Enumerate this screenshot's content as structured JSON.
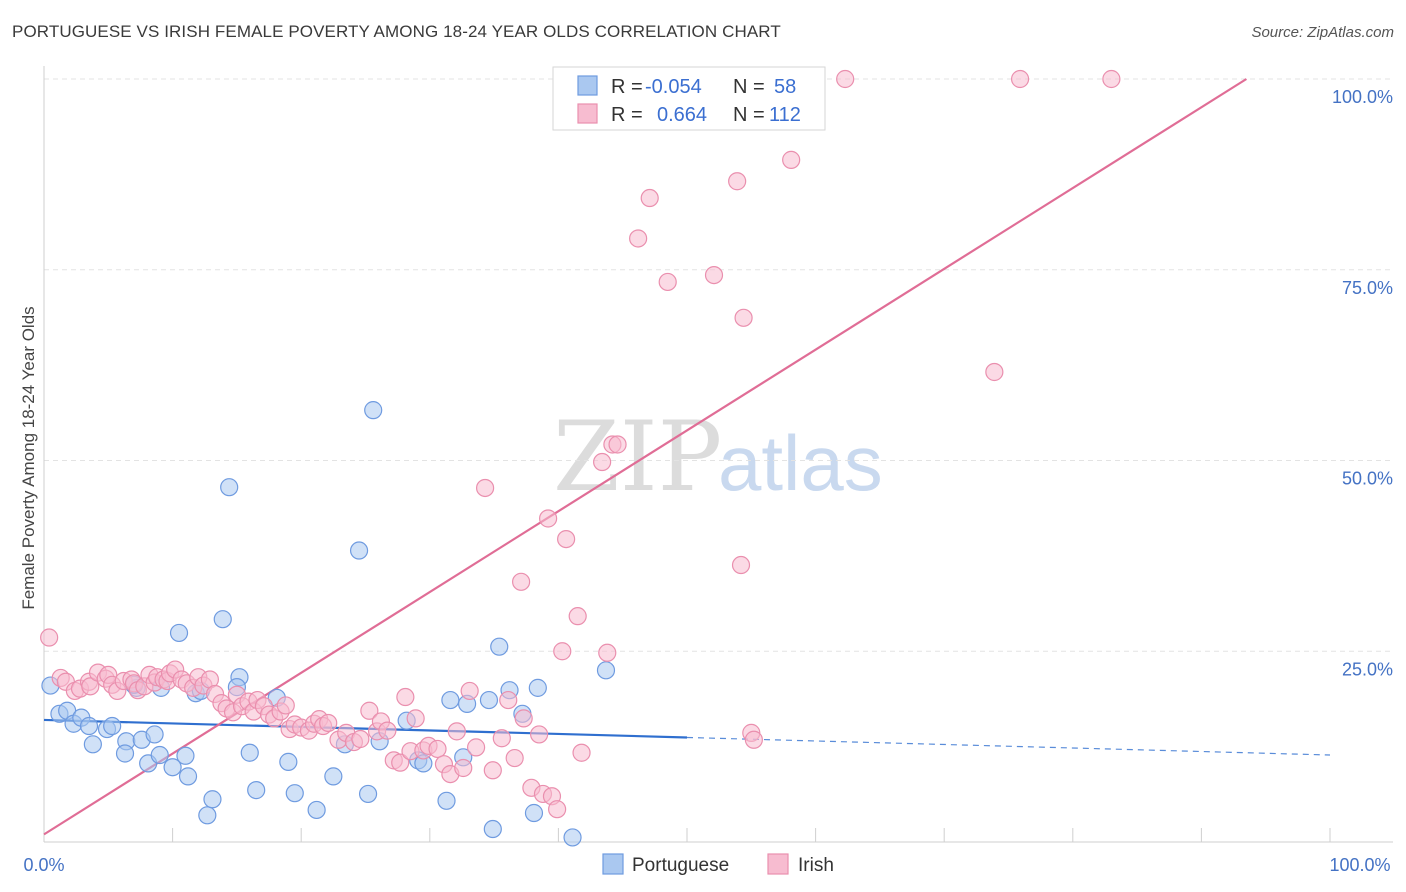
{
  "title": "PORTUGUESE VS IRISH FEMALE POVERTY AMONG 18-24 YEAR OLDS CORRELATION CHART",
  "source": "Source: ZipAtlas.com",
  "watermark": {
    "zip": "ZIP",
    "atlas": "atlas"
  },
  "colors": {
    "portuguese_fill": "#aac8f0",
    "portuguese_stroke": "#6f9be0",
    "portuguese_line": "#2f6fcf",
    "irish_fill": "#f7bcd0",
    "irish_stroke": "#ea8fae",
    "irish_line": "#e06d96",
    "tick_label": "#4472c4",
    "grid": "#e3e3e3"
  },
  "legend": {
    "rows": [
      {
        "r_label": "R =",
        "r_value": "-0.054",
        "n_label": "N =",
        "n_value": "58"
      },
      {
        "r_label": "R =",
        "r_value": "0.664",
        "n_label": "N =",
        "n_value": "112"
      }
    ]
  },
  "chart_data": {
    "type": "scatter",
    "title": "PORTUGUESE VS IRISH FEMALE POVERTY AMONG 18-24 YEAR OLDS CORRELATION CHART",
    "xlabel": "",
    "ylabel": "Female Poverty Among 18-24 Year Olds",
    "xlim": [
      0,
      100
    ],
    "ylim": [
      0,
      100
    ],
    "x_tick_labels": [
      "0.0%",
      "100.0%"
    ],
    "y_ticks": [
      25,
      50,
      75,
      100
    ],
    "y_tick_labels": [
      "25.0%",
      "50.0%",
      "75.0%",
      "100.0%"
    ],
    "grid": true,
    "legend_position": "top-center and bottom",
    "series": [
      {
        "name": "Portuguese",
        "r": -0.054,
        "n": 58,
        "trend": {
          "x": [
            0,
            50
          ],
          "y": [
            16.0,
            13.7
          ],
          "dashed_to": [
            100,
            11.4
          ]
        },
        "points": [
          [
            0.5,
            20.5
          ],
          [
            1.2,
            16.8
          ],
          [
            1.8,
            17.2
          ],
          [
            2.3,
            15.5
          ],
          [
            2.9,
            16.3
          ],
          [
            3.5,
            15.2
          ],
          [
            3.8,
            12.8
          ],
          [
            4.9,
            14.8
          ],
          [
            5.3,
            15.2
          ],
          [
            6.4,
            13.2
          ],
          [
            6.3,
            11.6
          ],
          [
            7.2,
            20.2
          ],
          [
            7.0,
            20.6
          ],
          [
            7.6,
            13.4
          ],
          [
            8.1,
            10.3
          ],
          [
            8.6,
            14.1
          ],
          [
            9.0,
            11.4
          ],
          [
            9.1,
            20.2
          ],
          [
            10.0,
            9.8
          ],
          [
            10.5,
            27.4
          ],
          [
            11.0,
            11.3
          ],
          [
            11.2,
            8.6
          ],
          [
            11.8,
            19.5
          ],
          [
            12.2,
            19.8
          ],
          [
            12.7,
            3.5
          ],
          [
            13.1,
            5.6
          ],
          [
            13.9,
            29.2
          ],
          [
            14.4,
            46.5
          ],
          [
            15.2,
            21.6
          ],
          [
            16.0,
            11.7
          ],
          [
            16.5,
            6.8
          ],
          [
            18.1,
            18.9
          ],
          [
            19.0,
            10.5
          ],
          [
            19.5,
            6.4
          ],
          [
            21.2,
            4.2
          ],
          [
            22.5,
            8.6
          ],
          [
            23.4,
            12.8
          ],
          [
            24.5,
            38.2
          ],
          [
            25.2,
            6.3
          ],
          [
            25.6,
            56.6
          ],
          [
            26.1,
            13.2
          ],
          [
            28.2,
            15.9
          ],
          [
            29.1,
            10.7
          ],
          [
            29.5,
            10.3
          ],
          [
            31.3,
            5.4
          ],
          [
            31.6,
            18.6
          ],
          [
            32.6,
            11.1
          ],
          [
            32.9,
            18.1
          ],
          [
            34.6,
            18.6
          ],
          [
            34.9,
            1.7
          ],
          [
            35.4,
            25.6
          ],
          [
            36.2,
            19.9
          ],
          [
            37.2,
            16.8
          ],
          [
            38.1,
            3.8
          ],
          [
            38.4,
            20.2
          ],
          [
            41.1,
            0.6
          ],
          [
            43.7,
            22.5
          ],
          [
            15.0,
            20.3
          ]
        ]
      },
      {
        "name": "Irish",
        "r": 0.664,
        "n": 112,
        "trend": {
          "x": [
            0,
            93.5
          ],
          "y": [
            1.0,
            100.0
          ]
        },
        "points": [
          [
            0.4,
            26.8
          ],
          [
            1.3,
            21.5
          ],
          [
            1.7,
            21.0
          ],
          [
            2.4,
            19.8
          ],
          [
            2.8,
            20.1
          ],
          [
            3.5,
            21.0
          ],
          [
            3.6,
            20.4
          ],
          [
            4.2,
            22.2
          ],
          [
            4.8,
            21.4
          ],
          [
            5.0,
            21.9
          ],
          [
            5.3,
            20.6
          ],
          [
            5.7,
            19.8
          ],
          [
            6.2,
            21.1
          ],
          [
            6.8,
            21.3
          ],
          [
            7.0,
            20.8
          ],
          [
            7.3,
            19.9
          ],
          [
            7.8,
            20.4
          ],
          [
            8.2,
            21.9
          ],
          [
            8.6,
            20.9
          ],
          [
            8.8,
            21.6
          ],
          [
            9.3,
            21.3
          ],
          [
            9.6,
            21.1
          ],
          [
            9.8,
            22.1
          ],
          [
            10.2,
            22.6
          ],
          [
            10.7,
            21.3
          ],
          [
            11.1,
            20.8
          ],
          [
            11.6,
            20.2
          ],
          [
            12.0,
            21.6
          ],
          [
            12.4,
            20.5
          ],
          [
            12.9,
            21.3
          ],
          [
            13.3,
            19.4
          ],
          [
            13.8,
            18.2
          ],
          [
            14.2,
            17.5
          ],
          [
            14.7,
            17.0
          ],
          [
            15.0,
            19.3
          ],
          [
            15.4,
            17.8
          ],
          [
            15.9,
            18.4
          ],
          [
            16.3,
            17.1
          ],
          [
            16.6,
            18.6
          ],
          [
            17.1,
            17.8
          ],
          [
            17.5,
            16.7
          ],
          [
            17.9,
            16.2
          ],
          [
            18.4,
            17.1
          ],
          [
            18.8,
            17.9
          ],
          [
            19.1,
            14.8
          ],
          [
            19.5,
            15.4
          ],
          [
            20.0,
            15.0
          ],
          [
            20.6,
            14.6
          ],
          [
            21.0,
            15.5
          ],
          [
            21.4,
            16.1
          ],
          [
            21.7,
            15.2
          ],
          [
            22.1,
            15.6
          ],
          [
            22.9,
            13.4
          ],
          [
            23.5,
            14.3
          ],
          [
            24.1,
            13.1
          ],
          [
            24.6,
            13.5
          ],
          [
            25.3,
            17.2
          ],
          [
            25.9,
            14.5
          ],
          [
            26.2,
            15.8
          ],
          [
            26.7,
            14.6
          ],
          [
            27.2,
            10.7
          ],
          [
            27.7,
            10.4
          ],
          [
            28.1,
            19.0
          ],
          [
            28.5,
            11.9
          ],
          [
            28.9,
            16.2
          ],
          [
            29.5,
            12.0
          ],
          [
            29.9,
            12.6
          ],
          [
            30.6,
            12.2
          ],
          [
            31.1,
            10.2
          ],
          [
            31.6,
            8.9
          ],
          [
            32.1,
            14.5
          ],
          [
            32.6,
            9.7
          ],
          [
            33.1,
            19.8
          ],
          [
            33.6,
            12.4
          ],
          [
            34.3,
            46.4
          ],
          [
            34.9,
            9.4
          ],
          [
            35.6,
            13.6
          ],
          [
            36.1,
            18.6
          ],
          [
            36.6,
            11.0
          ],
          [
            37.1,
            34.1
          ],
          [
            37.3,
            16.2
          ],
          [
            37.9,
            7.1
          ],
          [
            38.5,
            14.1
          ],
          [
            38.8,
            6.3
          ],
          [
            39.2,
            42.4
          ],
          [
            39.5,
            6.0
          ],
          [
            39.9,
            4.3
          ],
          [
            40.3,
            25.0
          ],
          [
            40.6,
            39.7
          ],
          [
            41.5,
            29.6
          ],
          [
            41.8,
            11.7
          ],
          [
            43.4,
            49.8
          ],
          [
            43.8,
            24.8
          ],
          [
            44.2,
            52.1
          ],
          [
            44.6,
            52.1
          ],
          [
            45.1,
            100.0
          ],
          [
            46.2,
            79.1
          ],
          [
            47.1,
            84.4
          ],
          [
            48.5,
            73.4
          ],
          [
            50.5,
            100.0
          ],
          [
            52.1,
            74.3
          ],
          [
            53.0,
            100.0
          ],
          [
            53.9,
            86.6
          ],
          [
            54.4,
            68.7
          ],
          [
            54.2,
            36.3
          ],
          [
            55.0,
            14.3
          ],
          [
            55.2,
            13.4
          ],
          [
            58.1,
            89.4
          ],
          [
            59.1,
            100.0
          ],
          [
            62.3,
            100.0
          ],
          [
            73.9,
            61.6
          ],
          [
            75.9,
            100.0
          ],
          [
            83.0,
            100.0
          ],
          [
            42.6,
            100.0
          ]
        ]
      }
    ]
  },
  "bottom_legend": [
    {
      "label": "Portuguese"
    },
    {
      "label": "Irish"
    }
  ]
}
